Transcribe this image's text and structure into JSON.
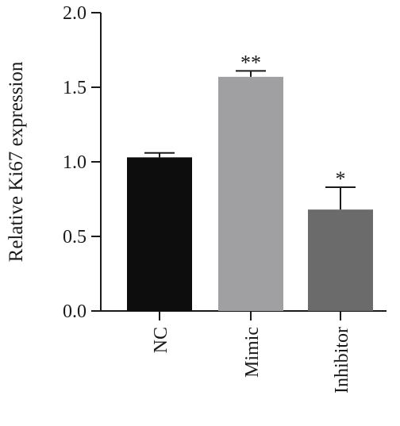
{
  "chart_data": {
    "type": "bar",
    "ylabel": "Relative Ki67 expression",
    "xlabel": "",
    "ylim": [
      0,
      2.0
    ],
    "yticks": [
      0.0,
      0.5,
      1.0,
      1.5,
      2.0
    ],
    "ytick_labels": [
      "0.0",
      "0.5",
      "1.0",
      "1.5",
      "2.0"
    ],
    "grid": false,
    "categories": [
      "NC",
      "Mimic",
      "Inhibitor"
    ],
    "values": [
      1.03,
      1.57,
      0.68
    ],
    "errors": [
      0.03,
      0.04,
      0.15
    ],
    "significance": [
      "",
      "**",
      "*"
    ],
    "colors": [
      "#0d0d0d",
      "#a0a0a2",
      "#6b6b6b"
    ]
  }
}
